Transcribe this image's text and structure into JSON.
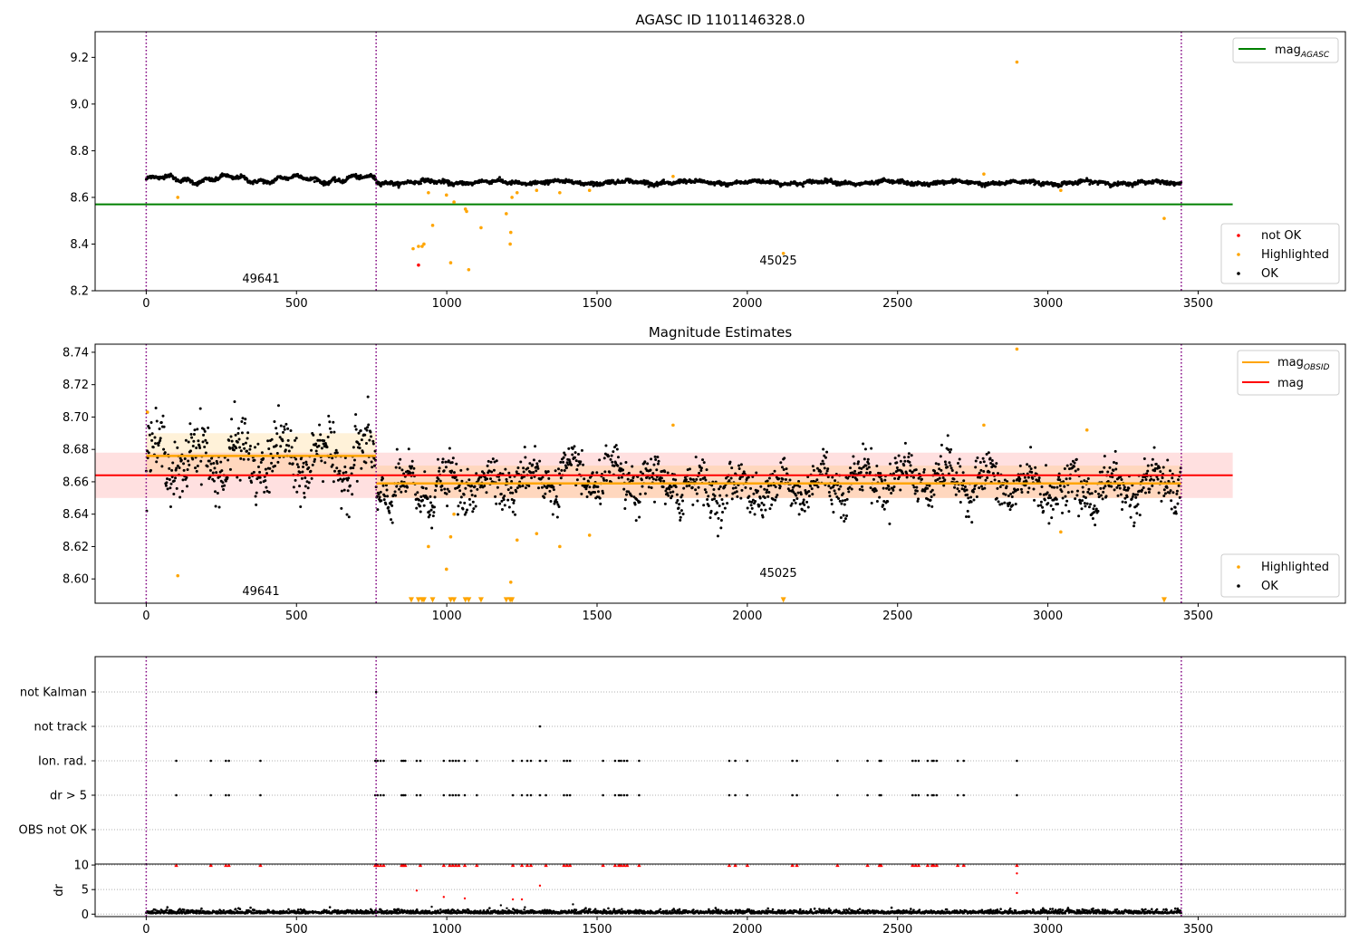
{
  "chart_data": [
    {
      "type": "scatter",
      "title": "AGASC ID 1101146328.0",
      "xlabel": "",
      "ylabel": "",
      "xlim": [
        -170,
        3990
      ],
      "ylim": [
        8.2,
        9.31
      ],
      "xticks": [
        0,
        500,
        1000,
        1500,
        2000,
        2500,
        3000,
        3500
      ],
      "yticks": [
        8.2,
        8.4,
        8.6,
        8.8,
        9.0,
        9.2
      ],
      "ytick_labels": [
        "8.2",
        "8.4",
        "8.6",
        "8.8",
        "9.0",
        "9.2"
      ],
      "grid": false,
      "obs_boundaries": [
        0,
        765,
        3444
      ],
      "annotations": [
        {
          "text": "49641",
          "x": 382,
          "y": 8.245
        },
        {
          "text": "45025",
          "x": 2104,
          "y": 8.32
        }
      ],
      "ok_band": {
        "x_range": [
          0,
          3444
        ],
        "base_segments": [
          [
            0,
            8.678
          ],
          [
            765,
            8.665
          ],
          [
            3444,
            8.662
          ]
        ]
      },
      "lines": [
        {
          "name": "mag_AGASC",
          "color": "#008000",
          "x": [
            -170,
            3615
          ],
          "y": [
            8.57,
            8.57
          ]
        }
      ],
      "series": [
        {
          "name": "not OK",
          "color": "#ff0000",
          "x": [
            906
          ],
          "y": [
            8.31
          ]
        },
        {
          "name": "Highlighted",
          "color": "#ffa500",
          "x": [
            105,
            888,
            906,
            918,
            924,
            939,
            953,
            999,
            1013,
            1024,
            1062,
            1066,
            1073,
            1114,
            1198,
            1211,
            1213,
            1217,
            1234,
            1299,
            1376,
            1475,
            1753,
            2120,
            2787,
            2897,
            3043,
            3387
          ],
          "y": [
            8.6,
            8.38,
            8.39,
            8.39,
            8.4,
            8.62,
            8.48,
            8.61,
            8.32,
            8.58,
            8.55,
            8.54,
            8.29,
            8.47,
            8.53,
            8.4,
            8.45,
            8.6,
            8.62,
            8.63,
            8.62,
            8.63,
            8.69,
            8.36,
            8.7,
            9.18,
            8.63,
            8.51
          ]
        },
        {
          "name": "OK",
          "color": "#000000"
        }
      ],
      "legends": [
        {
          "position": "upper right",
          "entries": [
            "mag_AGASC"
          ]
        },
        {
          "position": "lower right",
          "entries": [
            "not OK",
            "Highlighted",
            "OK"
          ]
        }
      ]
    },
    {
      "type": "scatter",
      "title": "Magnitude Estimates",
      "xlabel": "",
      "ylabel": "",
      "xlim": [
        -170,
        3990
      ],
      "ylim": [
        8.585,
        8.745
      ],
      "xticks": [
        0,
        500,
        1000,
        1500,
        2000,
        2500,
        3000,
        3500
      ],
      "yticks": [
        8.6,
        8.62,
        8.64,
        8.66,
        8.68,
        8.7,
        8.72,
        8.74
      ],
      "ytick_labels": [
        "8.60",
        "8.62",
        "8.64",
        "8.66",
        "8.68",
        "8.70",
        "8.72",
        "8.74"
      ],
      "grid": false,
      "obs_boundaries": [
        0,
        765,
        3444
      ],
      "annotations": [
        {
          "text": "49641",
          "x": 382,
          "y": 8.59
        },
        {
          "text": "45025",
          "x": 2104,
          "y": 8.602
        }
      ],
      "bands": [
        {
          "name": "mag band",
          "color": "#ff0000",
          "opacity": 0.12,
          "x_range": [
            -170,
            3615
          ],
          "y_range": [
            8.65,
            8.678
          ]
        },
        {
          "name": "mag_OBSID band 49641",
          "color": "#ffa500",
          "opacity": 0.15,
          "x_range": [
            0,
            765
          ],
          "y_range": [
            8.663,
            8.69
          ]
        },
        {
          "name": "mag_OBSID band 45025",
          "color": "#ffa500",
          "opacity": 0.15,
          "x_range": [
            765,
            3444
          ],
          "y_range": [
            8.65,
            8.67
          ]
        }
      ],
      "lines": [
        {
          "name": "mag_OBSID",
          "color": "#ffa500",
          "segments": [
            {
              "x": [
                0,
                765
              ],
              "y": [
                8.676,
                8.676
              ]
            },
            {
              "x": [
                765,
                3444
              ],
              "y": [
                8.659,
                8.659
              ]
            }
          ]
        },
        {
          "name": "mag",
          "color": "#ff0000",
          "x": [
            -170,
            3615
          ],
          "y": [
            8.664,
            8.664
          ]
        }
      ],
      "series": [
        {
          "name": "Highlighted",
          "color": "#ffa500",
          "x": [
            4,
            105,
            939,
            999,
            1013,
            1024,
            1213,
            1234,
            1299,
            1376,
            1475,
            1753,
            2787,
            2897,
            3043,
            3130
          ],
          "y": [
            8.703,
            8.602,
            8.62,
            8.606,
            8.626,
            8.64,
            8.598,
            8.624,
            8.628,
            8.62,
            8.627,
            8.695,
            8.695,
            8.742,
            8.629,
            8.692
          ]
        },
        {
          "name": "Highlighted below range",
          "marker": "v",
          "color": "#ffa500",
          "x": [
            882,
            906,
            918,
            924,
            953,
            1013,
            1024,
            1062,
            1073,
            1114,
            1198,
            1211,
            1217,
            2120,
            3387
          ],
          "y": [
            8.587,
            8.587,
            8.587,
            8.587,
            8.587,
            8.587,
            8.587,
            8.587,
            8.587,
            8.587,
            8.587,
            8.587,
            8.587,
            8.587,
            8.587
          ]
        },
        {
          "name": "OK",
          "color": "#000000"
        }
      ],
      "legends": [
        {
          "position": "upper right",
          "entries": [
            "mag_OBSID",
            "mag"
          ]
        },
        {
          "position": "lower right",
          "entries": [
            "Highlighted",
            "OK"
          ]
        }
      ]
    },
    {
      "type": "scatter",
      "title": "",
      "xlabel": "",
      "xlim": [
        -170,
        3990
      ],
      "categories": [
        "not Kalman",
        "not track",
        "Ion. rad.",
        "dr > 5",
        "OBS not OK"
      ],
      "obs_boundaries": [
        0,
        765,
        3444
      ],
      "flags": {
        "not Kalman": [
          765
        ],
        "not track": [
          1310
        ],
        "Ion. rad.": [
          100,
          215,
          265,
          275,
          380,
          762,
          770,
          780,
          790,
          850,
          856,
          862,
          900,
          912,
          990,
          1010,
          1020,
          1030,
          1040,
          1060,
          1100,
          1220,
          1250,
          1268,
          1280,
          1310,
          1330,
          1390,
          1400,
          1410,
          1520,
          1560,
          1573,
          1580,
          1590,
          1600,
          1640,
          1940,
          1960,
          2000,
          2150,
          2165,
          2300,
          2400,
          2440,
          2445,
          2550,
          2560,
          2570,
          2600,
          2615,
          2620,
          2630,
          2700,
          2720,
          2897
        ],
        "dr > 5": [
          100,
          215,
          265,
          275,
          380,
          762,
          770,
          780,
          790,
          850,
          856,
          862,
          900,
          912,
          990,
          1010,
          1020,
          1030,
          1040,
          1060,
          1100,
          1220,
          1250,
          1268,
          1280,
          1310,
          1330,
          1390,
          1400,
          1410,
          1520,
          1560,
          1573,
          1580,
          1590,
          1600,
          1640,
          1940,
          1960,
          2000,
          2150,
          2165,
          2300,
          2400,
          2440,
          2445,
          2550,
          2560,
          2570,
          2600,
          2615,
          2620,
          2630,
          2700,
          2720,
          2897
        ],
        "OBS not OK": []
      }
    },
    {
      "type": "scatter",
      "title": "",
      "xlabel": "",
      "ylabel": "dr",
      "xlim": [
        -170,
        3990
      ],
      "ylim": [
        -0.5,
        10.2
      ],
      "yticks": [
        0,
        5,
        10
      ],
      "ytick_labels": [
        "0",
        "5",
        "10"
      ],
      "xticks": [
        0,
        500,
        1000,
        1500,
        2000,
        2500,
        3000,
        3500
      ],
      "grid": true,
      "obs_boundaries": [
        0,
        765,
        3444
      ],
      "series": [
        {
          "name": "dr > 5 (clipped)",
          "marker": "^",
          "color": "#ff0000",
          "x": [
            100,
            215,
            265,
            275,
            380,
            762,
            770,
            780,
            790,
            850,
            856,
            862,
            912,
            990,
            1010,
            1020,
            1030,
            1040,
            1060,
            1100,
            1220,
            1250,
            1268,
            1280,
            1330,
            1390,
            1400,
            1410,
            1520,
            1560,
            1573,
            1580,
            1590,
            1600,
            1640,
            1940,
            1960,
            2000,
            2150,
            2165,
            2300,
            2400,
            2440,
            2445,
            2550,
            2560,
            2570,
            2600,
            2615,
            2620,
            2630,
            2700,
            2720,
            2897
          ],
          "y": [
            10,
            10,
            10,
            10,
            10,
            10,
            10,
            10,
            10,
            10,
            10,
            10,
            10,
            10,
            10,
            10,
            10,
            10,
            10,
            10,
            10,
            10,
            10,
            10,
            10,
            10,
            10,
            10,
            10,
            10,
            10,
            10,
            10,
            10,
            10,
            10,
            10,
            10,
            10,
            10,
            10,
            10,
            10,
            10,
            10,
            10,
            10,
            10,
            10,
            10,
            10,
            10,
            10,
            10
          ]
        },
        {
          "name": "dr large",
          "color": "#ff0000",
          "x": [
            900,
            990,
            1060,
            1220,
            1250,
            1310,
            2897,
            2897
          ],
          "y": [
            4.8,
            3.5,
            3.2,
            3.0,
            3.0,
            5.8,
            8.3,
            4.3
          ]
        },
        {
          "name": "OK",
          "color": "#000000"
        }
      ]
    }
  ]
}
